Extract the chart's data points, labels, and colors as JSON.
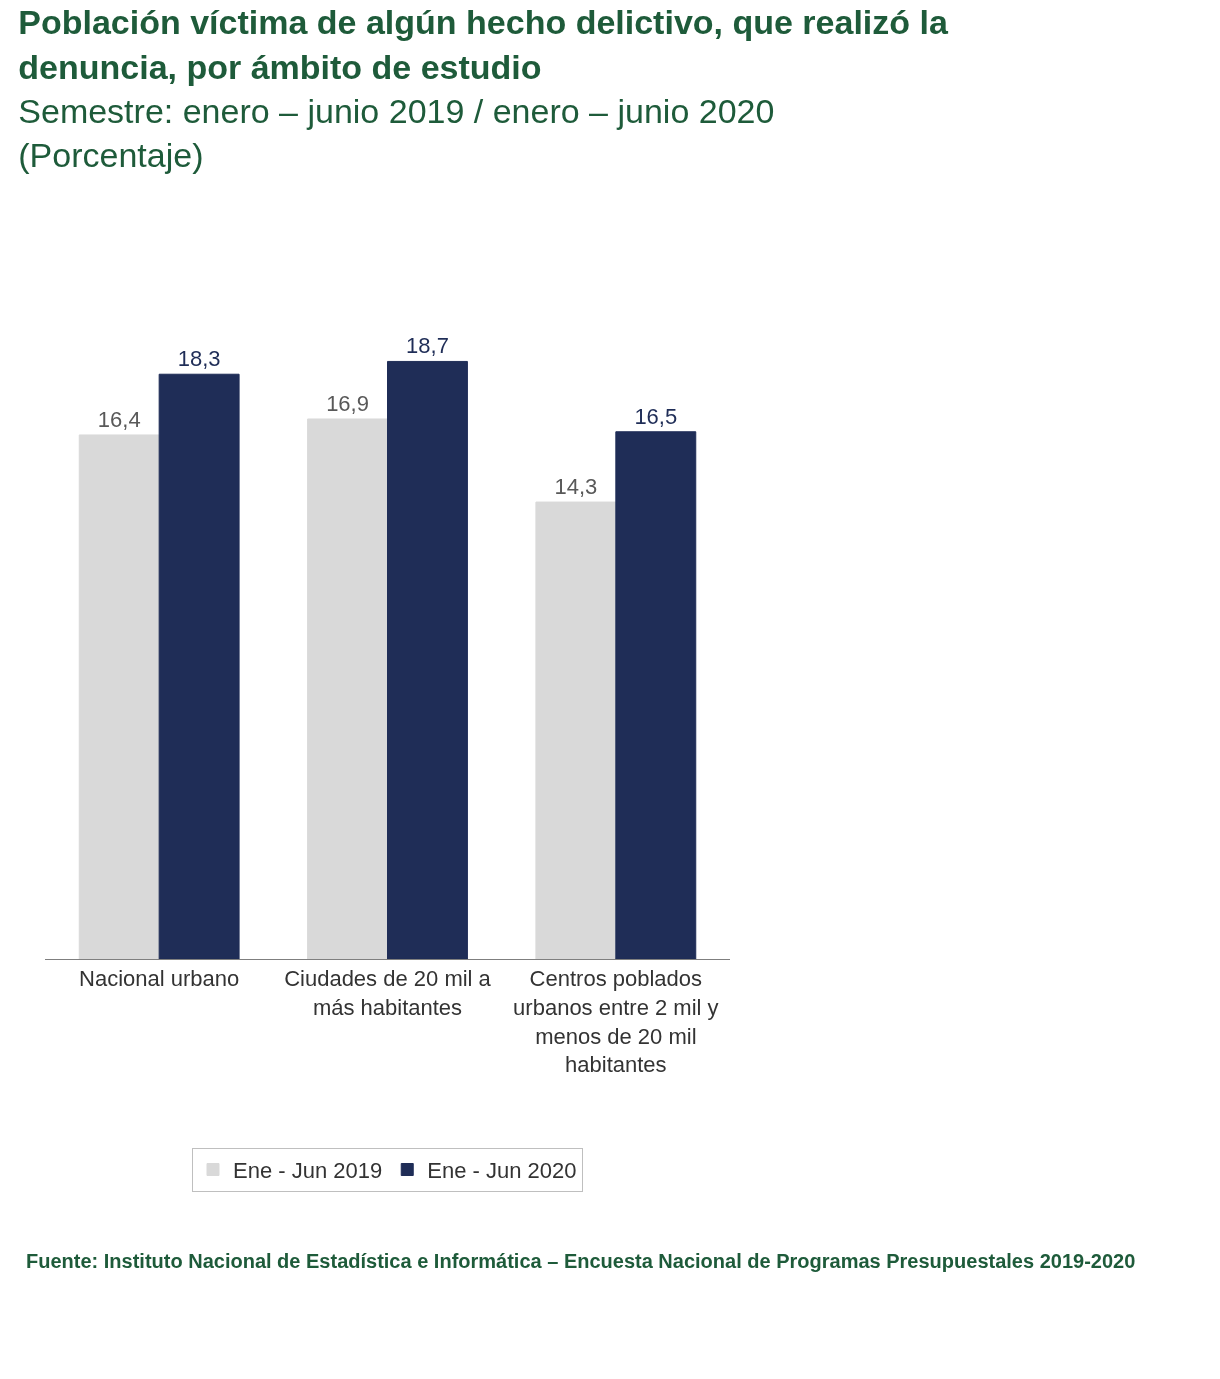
{
  "chart_data": {
    "type": "bar",
    "title": "Población víctima de algún hecho delictivo, que realizó la denuncia, por ámbito de estudio",
    "subtitle": "Semestre: enero – junio 2019 / enero – junio 2020\n(Porcentaje)",
    "categories": [
      "Nacional urbano",
      "Ciudades de 20 mil a más habitantes",
      "Centros poblados urbanos entre 2 mil y menos de 20 mil habitantes"
    ],
    "series": [
      {
        "name": "Ene - Jun 2019",
        "color": "#d9d9d9",
        "values": [
          16.4,
          16.9,
          14.3
        ],
        "value_labels": [
          "16,4",
          "16,9",
          "14,3"
        ]
      },
      {
        "name": "Ene - Jun 2020",
        "color": "#1f2d57",
        "values": [
          18.3,
          18.7,
          16.5
        ],
        "value_labels": [
          "18,3",
          "18,7",
          "16,5"
        ]
      }
    ],
    "legend": "bottom",
    "annotations": [
      "Fuente: Instituto Nacional de Estadística e Informática – Encuesta Nacional de Programas Presupuestales 2019-2020"
    ]
  }
}
